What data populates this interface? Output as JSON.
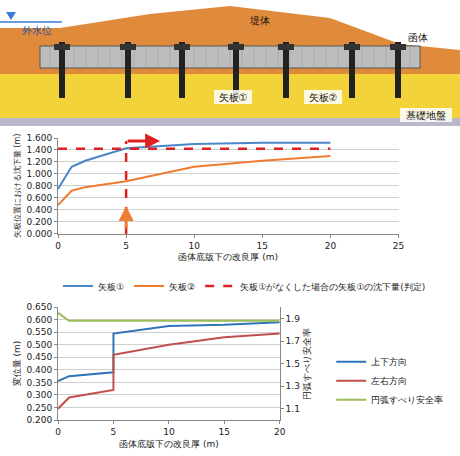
{
  "diagram": {
    "labels": {
      "water_level": "外水位",
      "embankment": "堤体",
      "culvert": "函体",
      "pile1": "矢板①",
      "pile2": "矢板②",
      "foundation": "基礎地盤"
    }
  },
  "chart_data": [
    {
      "type": "line",
      "x_label": "函体底版下の改良厚 (m)",
      "y_label": "矢板位置における沈下量 (m)",
      "xlim": [
        0,
        25
      ],
      "xticks": [
        0,
        5,
        10,
        15,
        20,
        25
      ],
      "ylim": [
        0,
        1.6
      ],
      "yticks": [
        {
          "value": 0,
          "label": "0.000"
        },
        {
          "value": 0.2,
          "label": "0.200"
        },
        {
          "value": 0.4,
          "label": "0.400"
        },
        {
          "value": 0.6,
          "label": "0.600"
        },
        {
          "value": 0.8,
          "label": "0.800"
        },
        {
          "value": 1.0,
          "label": "1.000"
        },
        {
          "value": 1.2,
          "label": "1.200"
        },
        {
          "value": 1.4,
          "label": "1.400"
        },
        {
          "value": 1.6,
          "label": "1.600"
        }
      ],
      "grid": true,
      "legend": "bottom",
      "series": [
        {
          "name": "矢板①",
          "color": "#4a86c8",
          "x": [
            0,
            1,
            2,
            5,
            10,
            15,
            20
          ],
          "values": [
            0.75,
            1.12,
            1.22,
            1.43,
            1.5,
            1.52,
            1.52
          ]
        },
        {
          "name": "矢板②",
          "color": "#ed7d31",
          "x": [
            0,
            1,
            2,
            5,
            10,
            15,
            20
          ],
          "values": [
            0.48,
            0.72,
            0.78,
            0.88,
            1.12,
            1.22,
            1.3
          ]
        },
        {
          "name": "矢板①がなくした場合の矢板①の沈下量(判定)",
          "color": "#e02020",
          "line_style": "dash",
          "x": [
            0,
            20
          ],
          "values": [
            1.42,
            1.42
          ]
        },
        {
          "color": "#e02020",
          "line_style": "dash",
          "x": [
            5,
            5
          ],
          "values": [
            0,
            1.55
          ]
        }
      ]
    },
    {
      "type": "line",
      "x_label": "函体底版下の改良厚 (m)",
      "y_label": "変位量 (m)",
      "y2_label": "円弧すべり安全率",
      "xlim": [
        0,
        20
      ],
      "xticks": [
        0,
        5,
        10,
        15,
        20
      ],
      "ylim": [
        0.2,
        0.65
      ],
      "yticks": [
        {
          "value": 0.2,
          "label": "0.200"
        },
        {
          "value": 0.25,
          "label": "0.250"
        },
        {
          "value": 0.3,
          "label": "0.300"
        },
        {
          "value": 0.35,
          "label": "0.350"
        },
        {
          "value": 0.4,
          "label": "0.400"
        },
        {
          "value": 0.45,
          "label": "0.450"
        },
        {
          "value": 0.5,
          "label": "0.500"
        },
        {
          "value": 0.55,
          "label": "0.550"
        },
        {
          "value": 0.6,
          "label": "0.600"
        },
        {
          "value": 0.65,
          "label": "0.650"
        }
      ],
      "y2lim": [
        1.0,
        2.0
      ],
      "y2ticks": [
        1.1,
        1.3,
        1.5,
        1.7,
        1.9
      ],
      "grid": true,
      "legend": "right",
      "series": [
        {
          "name": "上下方向",
          "color": "#2e75b6",
          "x": [
            0,
            1,
            5,
            5,
            10,
            15,
            20
          ],
          "values": [
            0.355,
            0.375,
            0.39,
            0.545,
            0.575,
            0.58,
            0.59
          ]
        },
        {
          "name": "左右方向",
          "color": "#c0504d",
          "x": [
            0,
            1,
            5,
            5,
            10,
            15,
            20
          ],
          "values": [
            0.245,
            0.29,
            0.32,
            0.46,
            0.5,
            0.53,
            0.545
          ]
        },
        {
          "name": "円弧すべり安全率",
          "color": "#9bbb59",
          "axis": "y2",
          "x": [
            0,
            1,
            20
          ],
          "values": [
            1.95,
            1.88,
            1.88
          ]
        }
      ]
    }
  ]
}
